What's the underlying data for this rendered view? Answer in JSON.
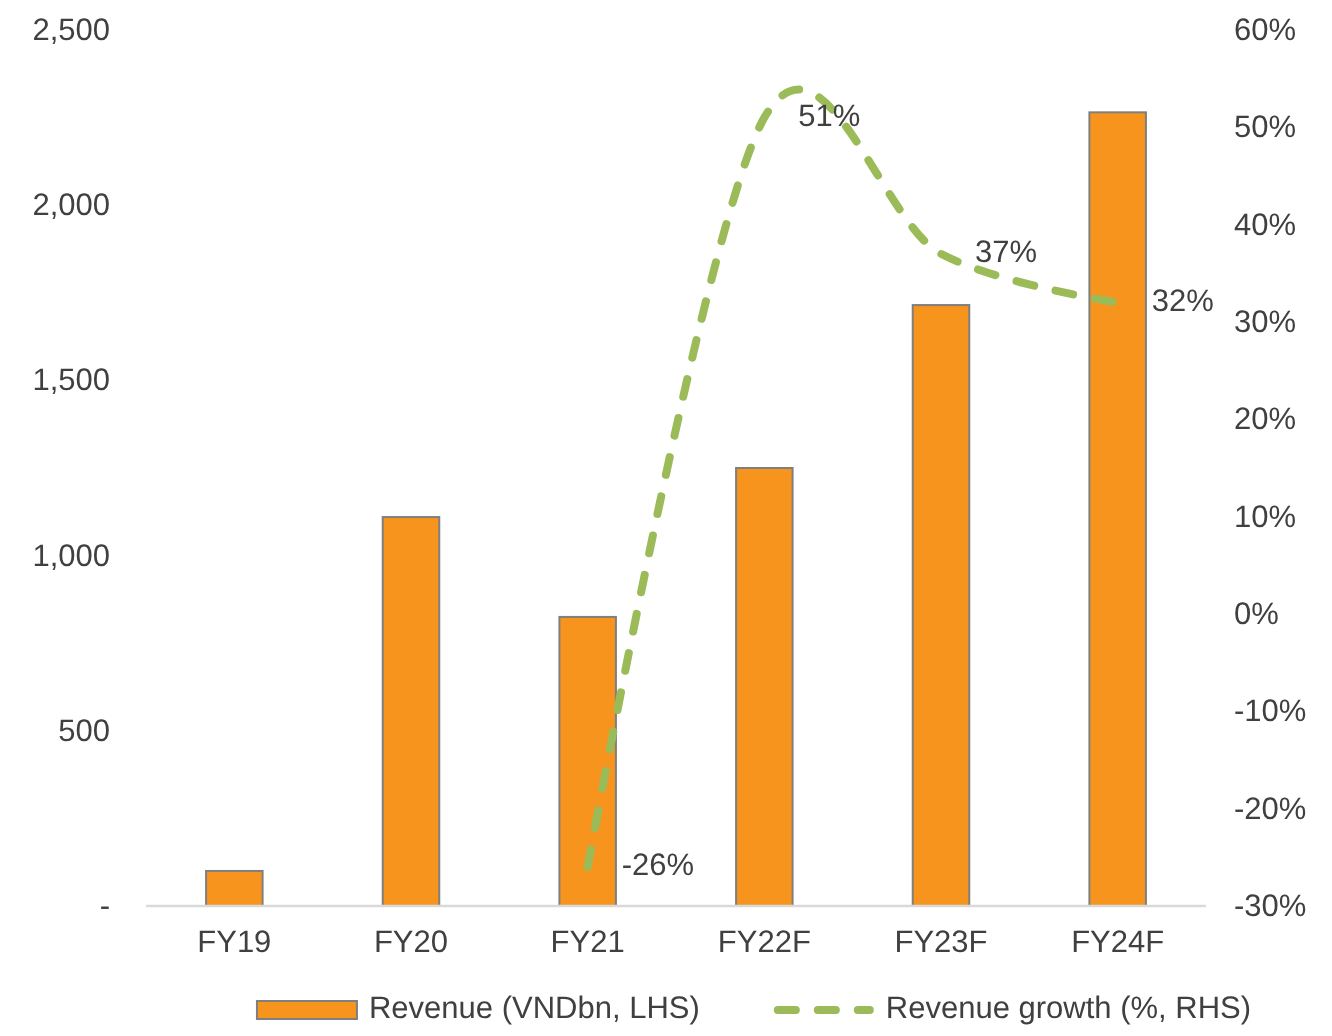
{
  "chart_data": {
    "type": "bar",
    "categories": [
      "FY19",
      "FY20",
      "FY21",
      "FY22F",
      "FY23F",
      "FY24F"
    ],
    "series": [
      {
        "name": "Revenue (VNDbn, LHS)",
        "color": "#f7941d",
        "values": [
          100,
          1110,
          825,
          1250,
          1715,
          2265
        ]
      },
      {
        "name": "Revenue growth (%, RHS)",
        "type": "line",
        "axis": "y2",
        "color": "#9bbb59",
        "line_style": "dashed",
        "values": [
          null,
          null,
          -26,
          51,
          37,
          32
        ],
        "value_labels": [
          null,
          null,
          "-26%",
          "51%",
          "37%",
          "32%"
        ]
      }
    ],
    "ylim": [
      0,
      2500
    ],
    "yticks": [
      {
        "value": 0,
        "label": "-"
      },
      500,
      {
        "value": 1000,
        "label": "1,000"
      },
      {
        "value": 1500,
        "label": "1,500"
      },
      {
        "value": 2000,
        "label": "2,000"
      },
      {
        "value": 2500,
        "label": "2,500"
      }
    ],
    "y2lim": [
      -30,
      60
    ],
    "y2ticks": [
      {
        "value": -30,
        "label": "-30%"
      },
      {
        "value": -20,
        "label": "-20%"
      },
      {
        "value": -10,
        "label": "-10%"
      },
      {
        "value": 0,
        "label": "0%"
      },
      {
        "value": 10,
        "label": "10%"
      },
      {
        "value": 20,
        "label": "20%"
      },
      {
        "value": 30,
        "label": "30%"
      },
      {
        "value": 40,
        "label": "40%"
      },
      {
        "value": 50,
        "label": "50%"
      },
      {
        "value": 60,
        "label": "60%"
      }
    ],
    "legend": "bottom"
  }
}
